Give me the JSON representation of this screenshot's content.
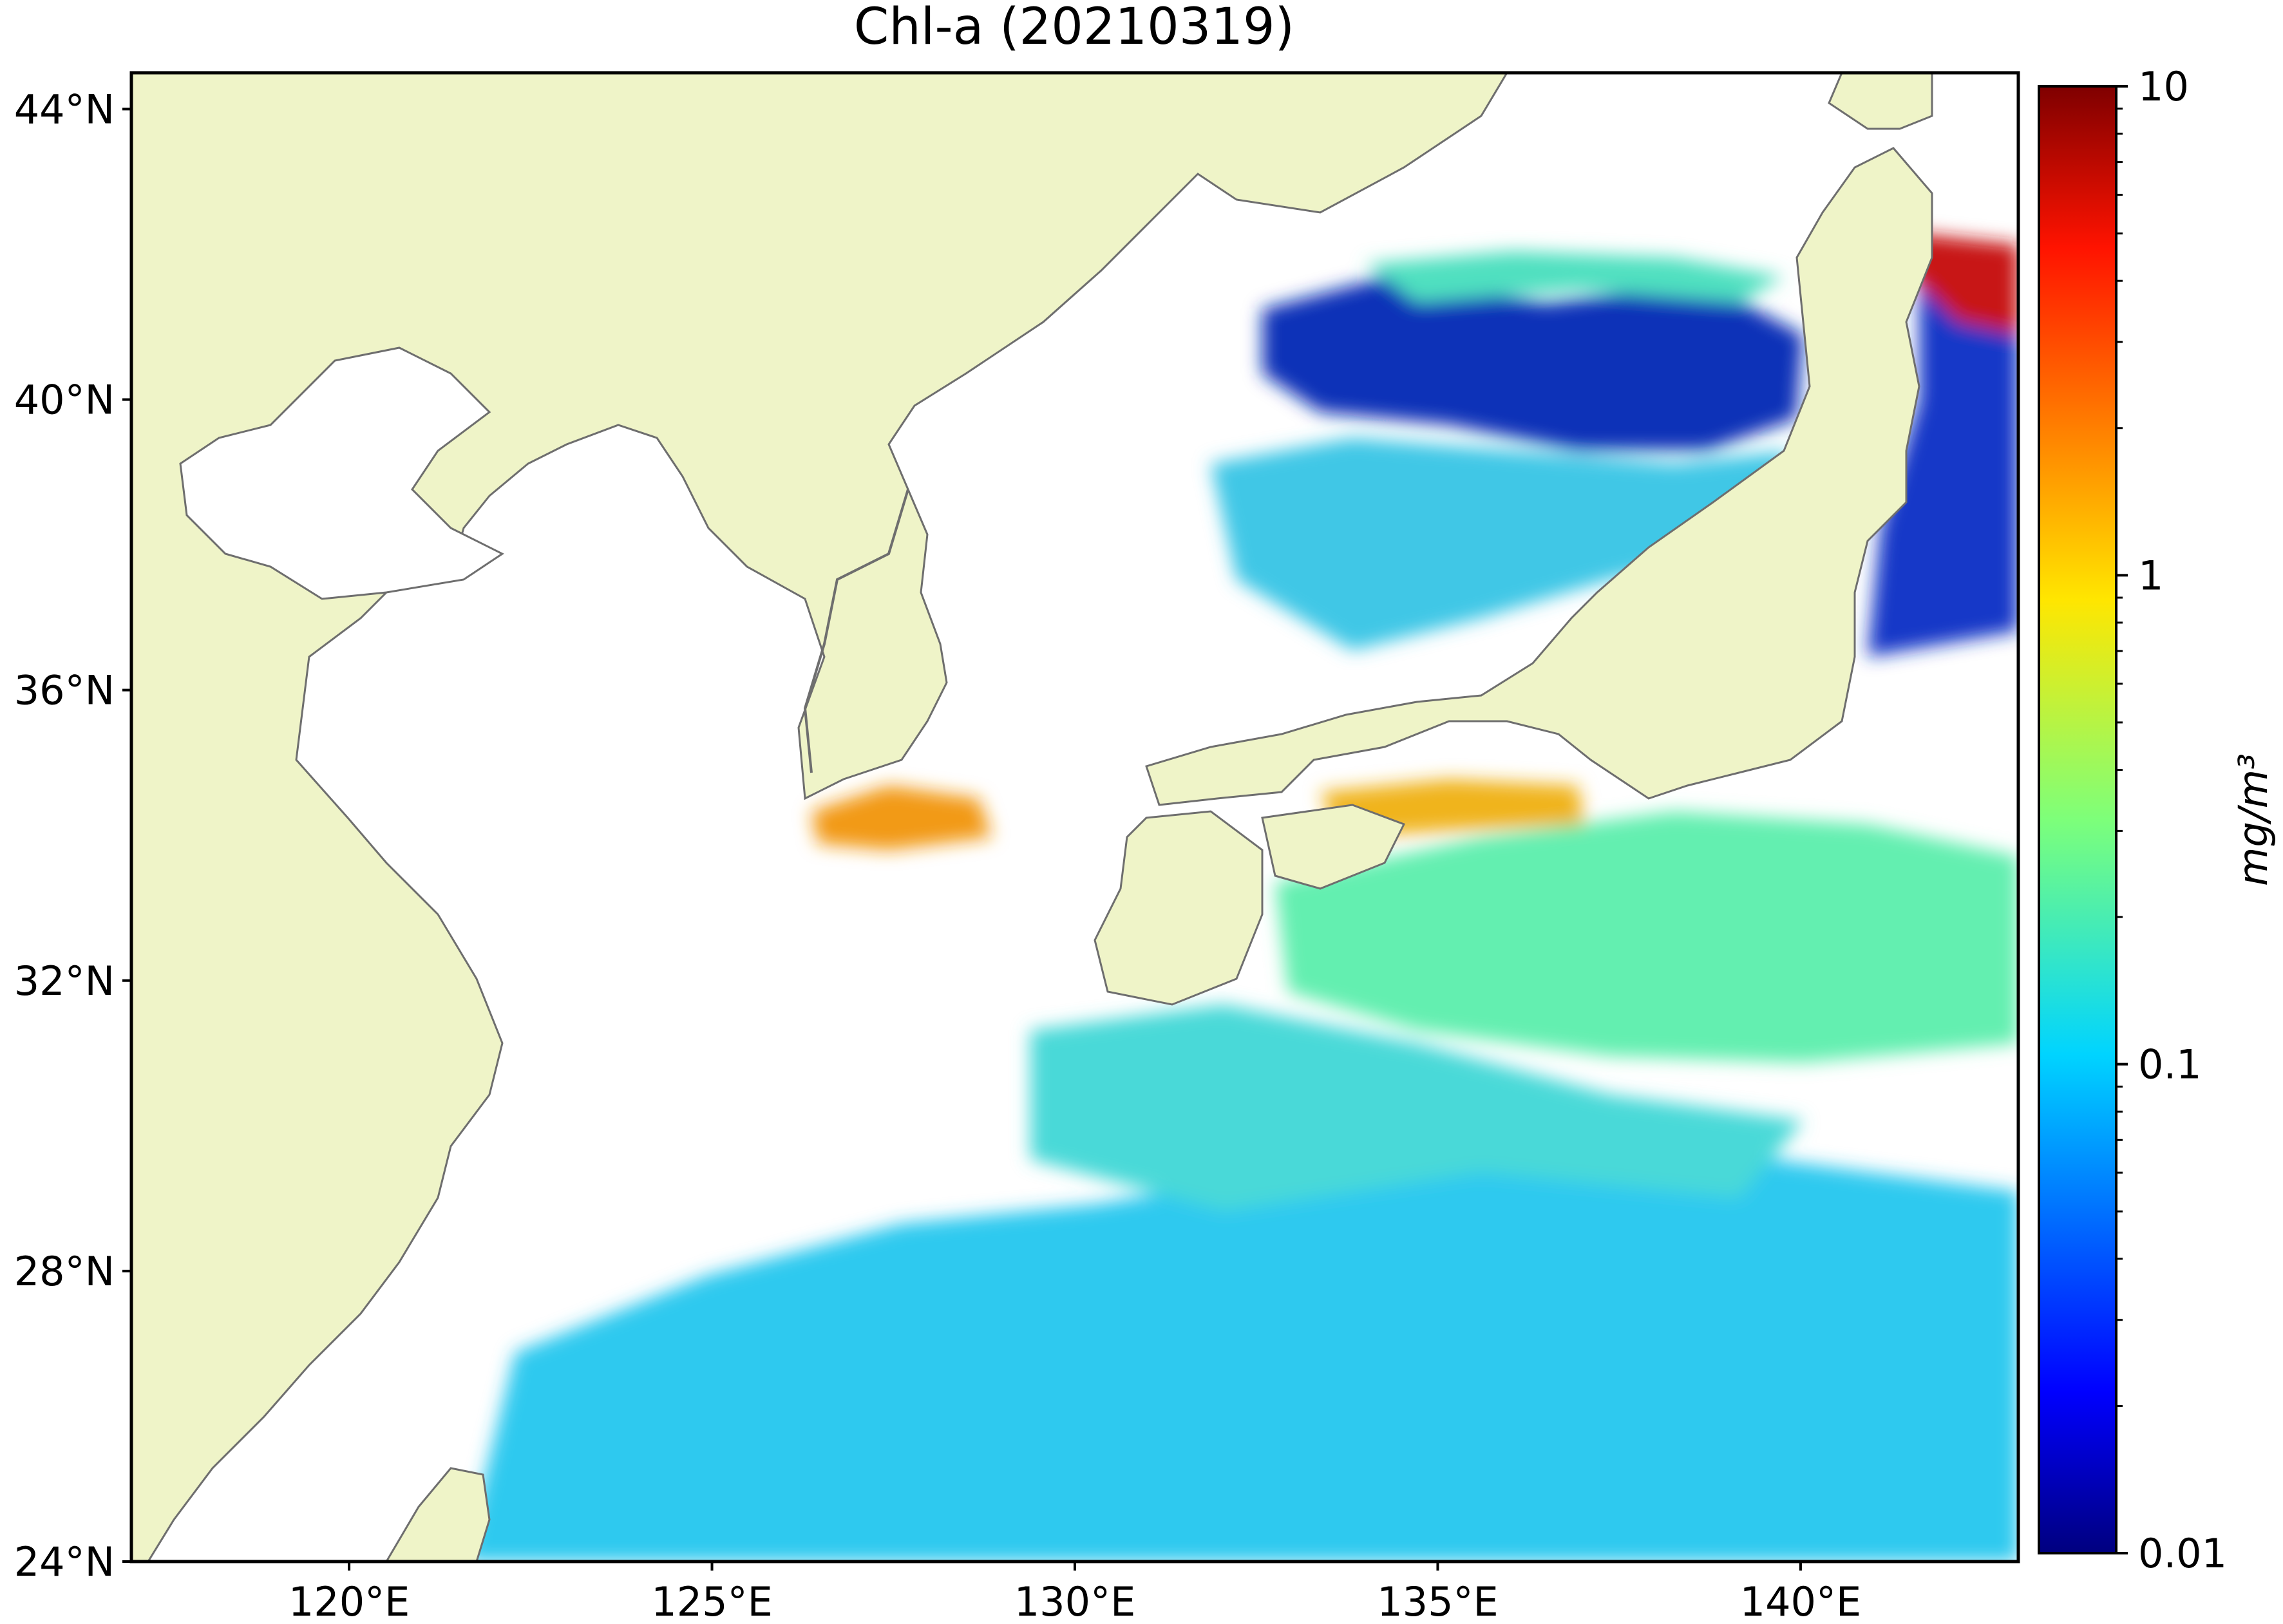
{
  "title": "Chl-a (20210319)",
  "map": {
    "lon_range": [
      117,
      143
    ],
    "lat_range": [
      24,
      44.5
    ],
    "land_color": "#eff4c8",
    "coast_color": "#6e6e6e",
    "nodata_color": "#ffffff"
  },
  "axes": {
    "lat_ticks": [
      {
        "value": 24,
        "label": "24°N"
      },
      {
        "value": 28,
        "label": "28°N"
      },
      {
        "value": 32,
        "label": "32°N"
      },
      {
        "value": 36,
        "label": "36°N"
      },
      {
        "value": 40,
        "label": "40°N"
      },
      {
        "value": 44,
        "label": "44°N"
      }
    ],
    "lon_ticks": [
      {
        "value": 120,
        "label": "120°E"
      },
      {
        "value": 125,
        "label": "125°E"
      },
      {
        "value": 130,
        "label": "130°E"
      },
      {
        "value": 135,
        "label": "135°E"
      },
      {
        "value": 140,
        "label": "140°E"
      }
    ]
  },
  "colorbar": {
    "label": "mg/m³",
    "scale": "log",
    "range": [
      0.01,
      10
    ],
    "ticks": [
      {
        "value": 10,
        "label": "10"
      },
      {
        "value": 1,
        "label": "1"
      },
      {
        "value": 0.1,
        "label": "0.1"
      },
      {
        "value": 0.01,
        "label": "0.01"
      }
    ],
    "colormap": "jet"
  }
}
